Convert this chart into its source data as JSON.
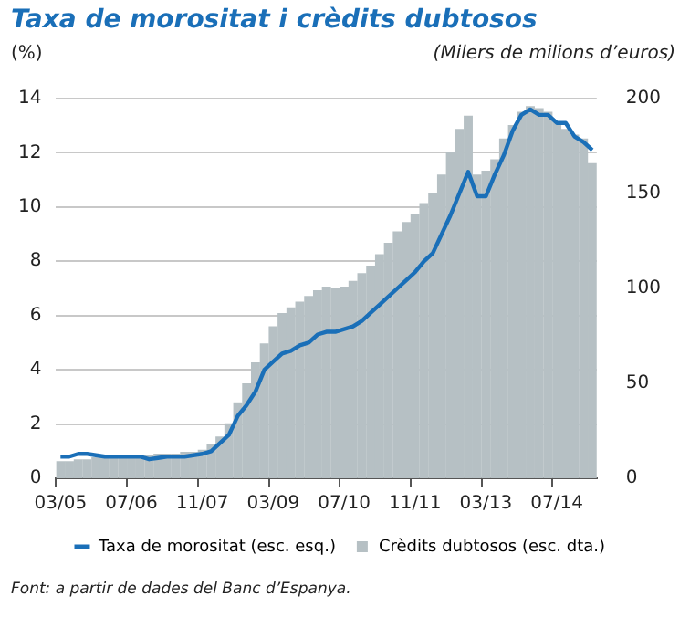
{
  "chart_data": {
    "type": "bar",
    "title": "Taxa de morositat i crèdits dubtosos",
    "ylabel": "(%)",
    "y2label": "(Milers de milions d’euros)",
    "categories": [
      "03/05",
      null,
      null,
      null,
      null,
      null,
      null,
      null,
      "07/06",
      null,
      null,
      null,
      null,
      null,
      null,
      null,
      "11/07",
      null,
      null,
      null,
      null,
      null,
      null,
      null,
      "03/09",
      null,
      null,
      null,
      null,
      null,
      null,
      null,
      "07/10",
      null,
      null,
      null,
      null,
      null,
      null,
      null,
      "11/11",
      null,
      null,
      null,
      null,
      null,
      null,
      null,
      "03/13",
      null,
      null,
      null,
      null,
      null,
      null,
      null,
      "07/14",
      null,
      null,
      null,
      null
    ],
    "series": [
      {
        "name": "Taxa de morositat (esc. esq.)",
        "type": "line",
        "color": "#1a6fb8",
        "values": [
          0.8,
          0.8,
          0.9,
          0.9,
          0.85,
          0.8,
          0.8,
          0.8,
          0.8,
          0.8,
          0.7,
          0.75,
          0.8,
          0.8,
          0.8,
          0.85,
          0.9,
          1.0,
          1.3,
          1.6,
          2.3,
          2.7,
          3.2,
          4.0,
          4.3,
          4.6,
          4.7,
          4.9,
          5.0,
          5.3,
          5.4,
          5.4,
          5.5,
          5.6,
          5.8,
          6.1,
          6.4,
          6.7,
          7.0,
          7.3,
          7.6,
          8.0,
          8.3,
          9.0,
          9.7,
          10.5,
          11.3,
          10.4,
          10.4,
          11.2,
          11.9,
          12.8,
          13.4,
          13.6,
          13.4,
          13.4,
          13.1,
          13.1,
          12.6,
          12.4,
          12.1
        ]
      },
      {
        "name": "Crèdits dubtosos (esc. dta.)",
        "axis": "y2",
        "color": "#b6c0c4",
        "values": [
          9,
          9,
          10,
          10,
          11,
          11,
          11,
          12,
          12,
          12,
          12,
          13,
          13,
          13,
          14,
          14,
          15,
          18,
          22,
          29,
          40,
          50,
          61,
          71,
          80,
          87,
          90,
          93,
          96,
          99,
          101,
          100,
          101,
          104,
          108,
          112,
          118,
          124,
          130,
          135,
          139,
          145,
          150,
          160,
          172,
          184,
          191,
          160,
          162,
          168,
          179,
          186,
          193,
          196,
          195,
          193,
          188,
          184,
          181,
          179,
          166
        ]
      }
    ],
    "ylim": [
      0,
      14
    ],
    "yticks": [
      0,
      2,
      4,
      6,
      8,
      10,
      12,
      14
    ],
    "y2lim": [
      0,
      200
    ],
    "y2ticks": [
      0,
      50,
      100,
      150,
      200
    ],
    "grid": "y",
    "legend": "bottom",
    "marker": "none",
    "line_style": "solid",
    "annotations": [
      "Font: a partir de dades del Banc d’Espanya."
    ]
  }
}
